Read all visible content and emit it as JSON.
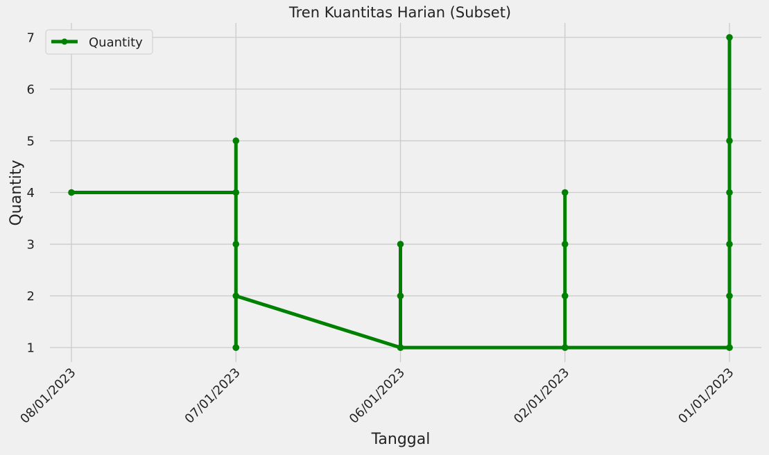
{
  "chart_data": {
    "type": "line",
    "title": "Tren Kuantitas Harian (Subset)",
    "xlabel": "Tanggal",
    "ylabel": "Quantity",
    "x_categories": [
      "08/01/2023",
      "07/01/2023",
      "06/01/2023",
      "02/01/2023",
      "01/01/2023"
    ],
    "ylim": [
      0.72,
      7.28
    ],
    "yticks": [
      1,
      2,
      3,
      4,
      5,
      6,
      7
    ],
    "grid": true,
    "legend_position": "top-left",
    "series": [
      {
        "name": "Quantity",
        "color": "#008000",
        "marker": "circle",
        "points": [
          {
            "x": "08/01/2023",
            "y": 4
          },
          {
            "x": "07/01/2023",
            "y": 4
          },
          {
            "x": "07/01/2023",
            "y": 1
          },
          {
            "x": "07/01/2023",
            "y": 5
          },
          {
            "x": "07/01/2023",
            "y": 3
          },
          {
            "x": "07/01/2023",
            "y": 1
          },
          {
            "x": "07/01/2023",
            "y": 2
          },
          {
            "x": "06/01/2023",
            "y": 1
          },
          {
            "x": "06/01/2023",
            "y": 3
          },
          {
            "x": "06/01/2023",
            "y": 2
          },
          {
            "x": "06/01/2023",
            "y": 1
          },
          {
            "x": "02/01/2023",
            "y": 1
          },
          {
            "x": "02/01/2023",
            "y": 4
          },
          {
            "x": "02/01/2023",
            "y": 3
          },
          {
            "x": "02/01/2023",
            "y": 2
          },
          {
            "x": "02/01/2023",
            "y": 1
          },
          {
            "x": "01/01/2023",
            "y": 1
          },
          {
            "x": "01/01/2023",
            "y": 7
          },
          {
            "x": "01/01/2023",
            "y": 5
          },
          {
            "x": "01/01/2023",
            "y": 4
          },
          {
            "x": "01/01/2023",
            "y": 3
          },
          {
            "x": "01/01/2023",
            "y": 2
          },
          {
            "x": "01/01/2023",
            "y": 1
          }
        ]
      }
    ]
  }
}
